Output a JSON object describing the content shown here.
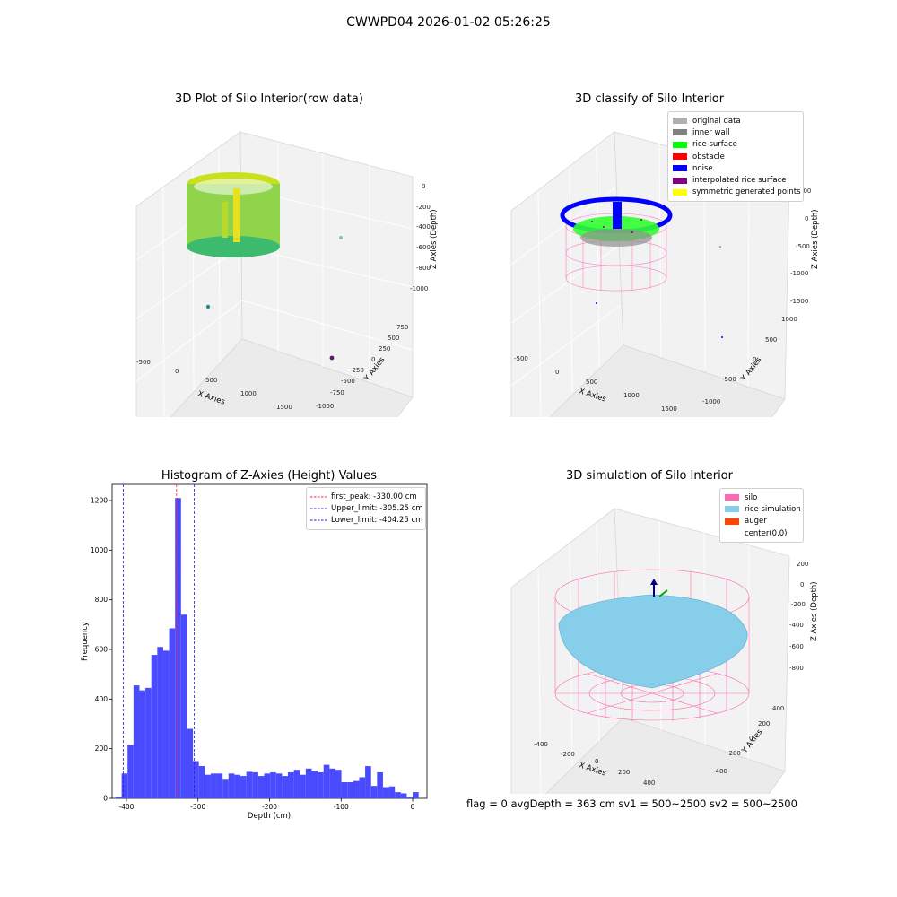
{
  "figure": {
    "suptitle": "CWWPD04 2026-01-02 05:26:25",
    "status_line": "flag = 0     avgDepth = 363 cm  sv1 = 500~2500  sv2 = 500~2500"
  },
  "panel_raw": {
    "title": "3D Plot of Silo Interior(row data)",
    "xlabel": "X Axies",
    "ylabel": "Y Axies",
    "zlabel": "Z Axies (Depth)",
    "xticks": [
      "-500",
      "0",
      "500",
      "1000",
      "1500"
    ],
    "yticks": [
      "750",
      "500",
      "250",
      "0",
      "-250",
      "-500",
      "-750",
      "-1000"
    ],
    "zticks": [
      "0",
      "-200",
      "-400",
      "-600",
      "-800",
      "-1000"
    ]
  },
  "panel_classify": {
    "title": "3D classify of Silo Interior",
    "xlabel": "X Axies",
    "ylabel": "Y Axies",
    "zlabel": "Z Axies (Depth)",
    "xticks": [
      "-500",
      "0",
      "500",
      "1000",
      "1500"
    ],
    "yticks": [
      "1000",
      "500",
      "0",
      "-500",
      "-1000"
    ],
    "zticks": [
      "500",
      "0",
      "-500",
      "-1000",
      "-1500"
    ],
    "legend": [
      {
        "label": "original data",
        "color": "#b0b0b0"
      },
      {
        "label": "inner wall",
        "color": "#808080"
      },
      {
        "label": "rice surface",
        "color": "#00ff00"
      },
      {
        "label": "obstacle",
        "color": "#ff0000"
      },
      {
        "label": "noise",
        "color": "#0000ff"
      },
      {
        "label": "interpolated rice surface",
        "color": "#800080"
      },
      {
        "label": "symmetric generated points",
        "color": "#ffff00"
      }
    ]
  },
  "panel_sim": {
    "title": "3D simulation of Silo Interior",
    "xlabel": "X Axies",
    "ylabel": "Y Axies",
    "zlabel": "Z Axies (Depth)",
    "xticks": [
      "-400",
      "-200",
      "0",
      "200",
      "400"
    ],
    "yticks": [
      "400",
      "200",
      "0",
      "-200",
      "-400"
    ],
    "zticks": [
      "200",
      "0",
      "-200",
      "-400",
      "-600",
      "-800"
    ],
    "legend": [
      {
        "label": "silo",
        "color": "#ff69b4"
      },
      {
        "label": "rice simulation",
        "color": "#87ceeb"
      },
      {
        "label": "auger",
        "color": "#ff4500"
      },
      {
        "label": "center(0,0)",
        "color": "#ffffff"
      }
    ]
  },
  "chart_data": [
    {
      "type": "bar",
      "title": "Histogram of Z-Axies (Height) Values",
      "xlabel": "Depth (cm)",
      "ylabel": "Frequency",
      "xlim": [
        -420,
        20
      ],
      "ylim": [
        0,
        1265
      ],
      "xticks": [
        -400,
        -300,
        -200,
        -100,
        0
      ],
      "yticks": [
        0,
        200,
        400,
        600,
        800,
        1000,
        1200
      ],
      "bin_start": -415,
      "bin_width": 8.3,
      "values": [
        5,
        100,
        215,
        455,
        435,
        445,
        578,
        610,
        595,
        685,
        1210,
        740,
        280,
        150,
        130,
        95,
        100,
        100,
        75,
        100,
        95,
        90,
        107,
        105,
        90,
        100,
        105,
        100,
        90,
        105,
        115,
        95,
        120,
        110,
        105,
        135,
        120,
        115,
        65,
        65,
        70,
        85,
        130,
        50,
        105,
        45,
        48,
        25,
        20,
        5,
        25
      ],
      "bar_color": "#4a4aff",
      "lines": [
        {
          "label": "first_peak: -330.00 cm",
          "x": -330.0,
          "color": "#ff2020"
        },
        {
          "label": "Upper_limit: -305.25 cm",
          "x": -305.25,
          "color": "#2020dd"
        },
        {
          "label": "Lower_limit: -404.25 cm",
          "x": -404.25,
          "color": "#2020dd"
        }
      ],
      "legend_position": "top-right"
    }
  ]
}
